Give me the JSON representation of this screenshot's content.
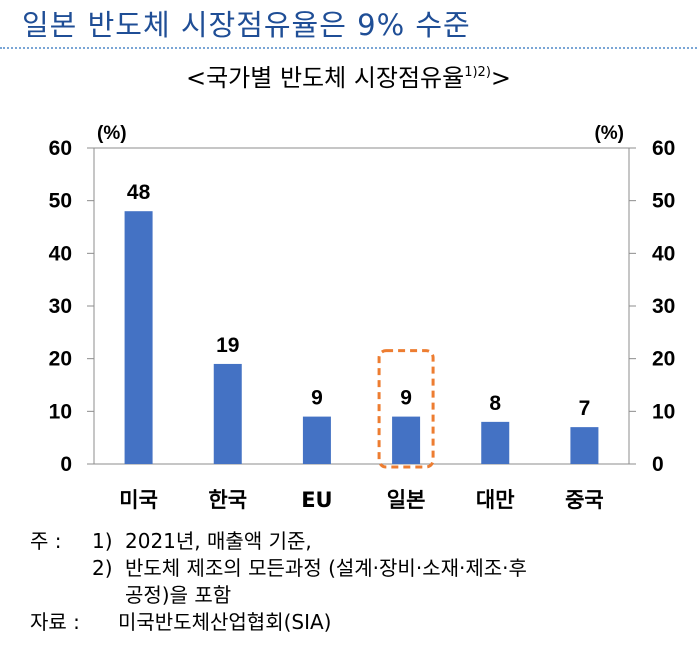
{
  "heading": "일본 반도체 시장점유율은 9% 수준",
  "chart_data": {
    "type": "bar",
    "title": "<국가별 반도체 시장점유율",
    "title_sup": "1)2)",
    "title_end": ">",
    "categories": [
      "미국",
      "한국",
      "EU",
      "일본",
      "대만",
      "중국"
    ],
    "values": [
      48,
      19,
      9,
      9,
      8,
      7
    ],
    "data_labels": [
      "48",
      "19",
      "9",
      "9",
      "8",
      "7"
    ],
    "ylim": [
      0,
      60
    ],
    "yticks": [
      "0",
      "10",
      "20",
      "30",
      "40",
      "50",
      "60"
    ],
    "ylabel_left": "(%)",
    "ylabel_right": "(%)",
    "grid": false,
    "highlight_category": "일본",
    "bar_color": "#4472c4",
    "highlight_color": "#ed7d31"
  },
  "notes": {
    "label": "주 :",
    "items": [
      {
        "num": "1)",
        "text": "2021년, 매출액 기준,"
      },
      {
        "num": "2)",
        "text": "반도체 제조의 모든과정 (설계·장비·소재·제조·후"
      }
    ],
    "continuation": "공정)을 포함"
  },
  "source": {
    "label": "자료 :",
    "text": "미국반도체산업협회(SIA)"
  }
}
